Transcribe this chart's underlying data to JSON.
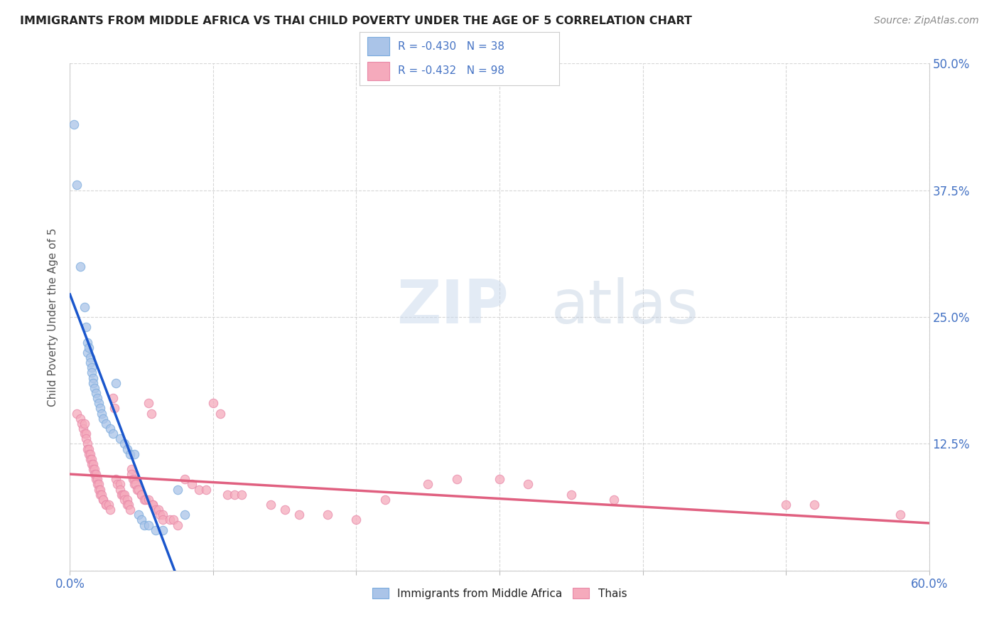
{
  "title": "IMMIGRANTS FROM MIDDLE AFRICA VS THAI CHILD POVERTY UNDER THE AGE OF 5 CORRELATION CHART",
  "source": "Source: ZipAtlas.com",
  "ylabel": "Child Poverty Under the Age of 5",
  "watermark_zip": "ZIP",
  "watermark_atlas": "atlas",
  "legend_label1": "Immigrants from Middle Africa",
  "legend_label2": "Thais",
  "R1": -0.43,
  "N1": 38,
  "R2": -0.432,
  "N2": 98,
  "blue_color": "#aac4e8",
  "pink_color": "#f5aabc",
  "blue_line_color": "#1a56cc",
  "pink_line_color": "#e06080",
  "title_color": "#222222",
  "axis_tick_color": "#4472c4",
  "right_tick_color": "#4472c4",
  "legend_text_color": "#4472c4",
  "blue_scatter": [
    [
      0.3,
      44.0
    ],
    [
      0.5,
      38.0
    ],
    [
      0.7,
      30.0
    ],
    [
      1.0,
      26.0
    ],
    [
      1.1,
      24.0
    ],
    [
      1.2,
      22.5
    ],
    [
      1.2,
      21.5
    ],
    [
      1.3,
      22.0
    ],
    [
      1.4,
      21.0
    ],
    [
      1.4,
      20.5
    ],
    [
      1.5,
      20.0
    ],
    [
      1.5,
      19.5
    ],
    [
      1.6,
      19.0
    ],
    [
      1.6,
      18.5
    ],
    [
      1.7,
      18.0
    ],
    [
      1.8,
      17.5
    ],
    [
      1.9,
      17.0
    ],
    [
      2.0,
      16.5
    ],
    [
      2.1,
      16.0
    ],
    [
      2.2,
      15.5
    ],
    [
      2.3,
      15.0
    ],
    [
      2.5,
      14.5
    ],
    [
      2.8,
      14.0
    ],
    [
      3.0,
      13.5
    ],
    [
      3.2,
      18.5
    ],
    [
      3.5,
      13.0
    ],
    [
      3.8,
      12.5
    ],
    [
      4.0,
      12.0
    ],
    [
      4.2,
      11.5
    ],
    [
      4.5,
      11.5
    ],
    [
      4.8,
      5.5
    ],
    [
      5.0,
      5.0
    ],
    [
      5.2,
      4.5
    ],
    [
      5.5,
      4.5
    ],
    [
      6.0,
      4.0
    ],
    [
      6.5,
      4.0
    ],
    [
      7.5,
      8.0
    ],
    [
      8.0,
      5.5
    ]
  ],
  "pink_scatter": [
    [
      0.5,
      15.5
    ],
    [
      0.7,
      15.0
    ],
    [
      0.8,
      14.5
    ],
    [
      0.9,
      14.0
    ],
    [
      1.0,
      14.5
    ],
    [
      1.0,
      13.5
    ],
    [
      1.1,
      13.5
    ],
    [
      1.1,
      13.0
    ],
    [
      1.2,
      12.5
    ],
    [
      1.2,
      12.0
    ],
    [
      1.3,
      12.0
    ],
    [
      1.3,
      11.5
    ],
    [
      1.4,
      11.5
    ],
    [
      1.4,
      11.0
    ],
    [
      1.5,
      11.0
    ],
    [
      1.5,
      10.5
    ],
    [
      1.6,
      10.5
    ],
    [
      1.6,
      10.0
    ],
    [
      1.7,
      10.0
    ],
    [
      1.7,
      9.5
    ],
    [
      1.8,
      9.5
    ],
    [
      1.8,
      9.0
    ],
    [
      1.9,
      9.0
    ],
    [
      1.9,
      8.5
    ],
    [
      2.0,
      8.5
    ],
    [
      2.0,
      8.0
    ],
    [
      2.1,
      8.0
    ],
    [
      2.1,
      7.5
    ],
    [
      2.2,
      7.5
    ],
    [
      2.3,
      7.0
    ],
    [
      2.3,
      7.0
    ],
    [
      2.5,
      6.5
    ],
    [
      2.5,
      6.5
    ],
    [
      2.7,
      6.5
    ],
    [
      2.8,
      6.0
    ],
    [
      3.0,
      17.0
    ],
    [
      3.1,
      16.0
    ],
    [
      3.2,
      9.0
    ],
    [
      3.3,
      8.5
    ],
    [
      3.5,
      8.5
    ],
    [
      3.5,
      8.0
    ],
    [
      3.6,
      7.5
    ],
    [
      3.7,
      7.5
    ],
    [
      3.8,
      7.5
    ],
    [
      3.8,
      7.0
    ],
    [
      4.0,
      7.0
    ],
    [
      4.0,
      6.5
    ],
    [
      4.1,
      6.5
    ],
    [
      4.2,
      6.0
    ],
    [
      4.3,
      10.0
    ],
    [
      4.3,
      9.5
    ],
    [
      4.4,
      9.0
    ],
    [
      4.5,
      9.0
    ],
    [
      4.5,
      8.5
    ],
    [
      4.6,
      8.5
    ],
    [
      4.7,
      8.0
    ],
    [
      4.8,
      8.0
    ],
    [
      5.0,
      7.5
    ],
    [
      5.0,
      7.5
    ],
    [
      5.2,
      7.0
    ],
    [
      5.3,
      7.0
    ],
    [
      5.5,
      7.0
    ],
    [
      5.5,
      16.5
    ],
    [
      5.7,
      15.5
    ],
    [
      5.8,
      6.5
    ],
    [
      5.8,
      6.5
    ],
    [
      6.0,
      6.0
    ],
    [
      6.2,
      6.0
    ],
    [
      6.3,
      5.5
    ],
    [
      6.5,
      5.5
    ],
    [
      6.5,
      5.0
    ],
    [
      7.0,
      5.0
    ],
    [
      7.2,
      5.0
    ],
    [
      7.5,
      4.5
    ],
    [
      8.0,
      9.0
    ],
    [
      8.5,
      8.5
    ],
    [
      9.0,
      8.0
    ],
    [
      9.5,
      8.0
    ],
    [
      10.0,
      16.5
    ],
    [
      10.5,
      15.5
    ],
    [
      11.0,
      7.5
    ],
    [
      11.5,
      7.5
    ],
    [
      12.0,
      7.5
    ],
    [
      14.0,
      6.5
    ],
    [
      15.0,
      6.0
    ],
    [
      16.0,
      5.5
    ],
    [
      18.0,
      5.5
    ],
    [
      20.0,
      5.0
    ],
    [
      22.0,
      7.0
    ],
    [
      25.0,
      8.5
    ],
    [
      27.0,
      9.0
    ],
    [
      30.0,
      9.0
    ],
    [
      32.0,
      8.5
    ],
    [
      35.0,
      7.5
    ],
    [
      38.0,
      7.0
    ],
    [
      50.0,
      6.5
    ],
    [
      52.0,
      6.5
    ],
    [
      58.0,
      5.5
    ]
  ],
  "xlim": [
    0,
    60
  ],
  "ylim": [
    0,
    50
  ],
  "xtick_positions": [
    0,
    60
  ],
  "xtick_labels": [
    "0.0%",
    "60.0%"
  ],
  "yticks_right": [
    0,
    12.5,
    25.0,
    37.5,
    50.0
  ],
  "ytick_labels_right": [
    "",
    "12.5%",
    "25.0%",
    "37.5%",
    "50.0%"
  ],
  "grid_color": "#cccccc",
  "background_color": "#ffffff",
  "scatter_size": 80,
  "scatter_alpha": 0.75,
  "scatter_linewidth": 0.8,
  "scatter_edgecolor_blue": "#7aabdd",
  "scatter_edgecolor_pink": "#e888a8"
}
